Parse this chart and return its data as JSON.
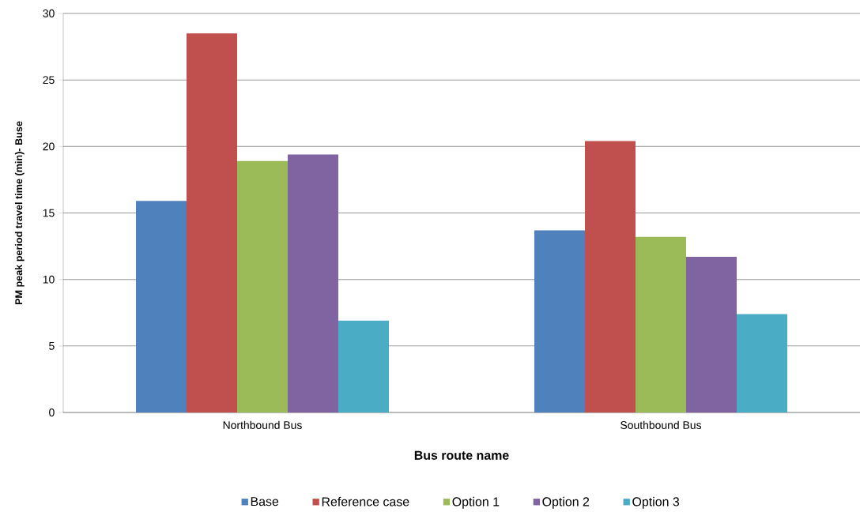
{
  "chart_data": {
    "type": "bar",
    "xlabel": "Bus route name",
    "ylabel": "PM peak period travel time (min)- Buse",
    "categories": [
      "Northbound Bus",
      "Southbound Bus"
    ],
    "series": [
      {
        "name": "Base",
        "color": "#4f81bd",
        "values": [
          15.9,
          13.7
        ]
      },
      {
        "name": "Reference case",
        "color": "#c0504d",
        "values": [
          28.5,
          20.4
        ]
      },
      {
        "name": "Option 1",
        "color": "#9bbb59",
        "values": [
          18.9,
          13.2
        ]
      },
      {
        "name": "Option 2",
        "color": "#8064a2",
        "values": [
          19.4,
          11.7
        ]
      },
      {
        "name": "Option 3",
        "color": "#4bacc6",
        "values": [
          6.9,
          7.4
        ]
      }
    ],
    "ylim": [
      0,
      30
    ],
    "yticks": [
      0,
      5,
      10,
      15,
      20,
      25,
      30
    ],
    "grid": "y",
    "legend": "bottom"
  }
}
